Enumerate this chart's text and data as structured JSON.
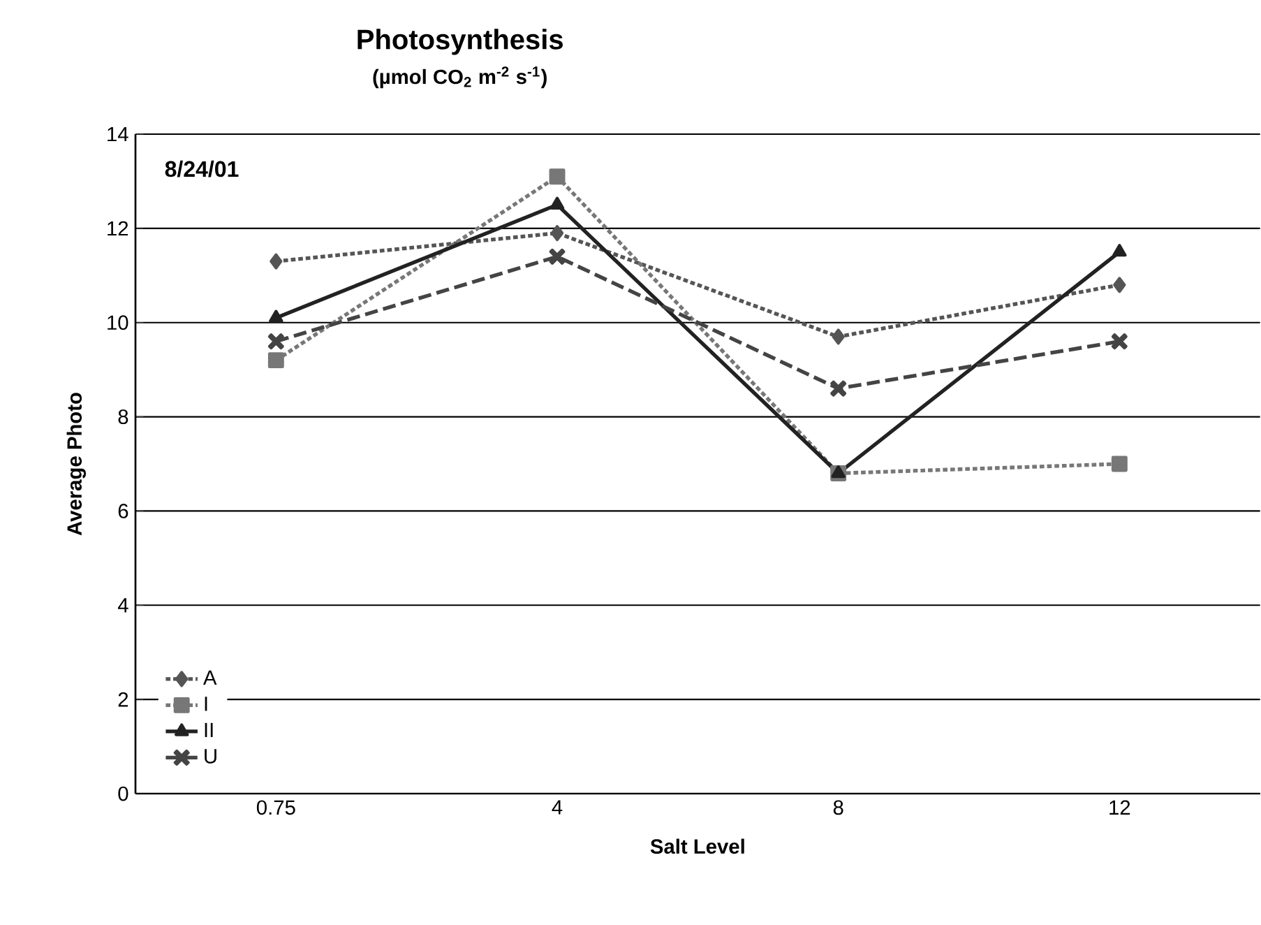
{
  "chart_data": {
    "type": "line",
    "title": "Photosynthesis",
    "subtitle": "(µmol CO$_{2}$ m$^{-2}$ s$^{-1}$)",
    "xlabel": "Salt Level",
    "ylabel": "Average Photo",
    "categories": [
      "0.75",
      "4",
      "8",
      "12"
    ],
    "series": [
      {
        "name": "A",
        "color": "#555555",
        "marker": "diamond",
        "line_style": "dotted",
        "values": [
          11.3,
          11.9,
          9.7,
          10.8
        ]
      },
      {
        "name": "I",
        "color": "#777777",
        "marker": "square",
        "line_style": "dotted",
        "values": [
          9.2,
          13.1,
          6.8,
          7.0
        ]
      },
      {
        "name": "II",
        "color": "#222222",
        "marker": "triangle",
        "line_style": "solid",
        "values": [
          10.1,
          12.5,
          6.8,
          11.5
        ]
      },
      {
        "name": "U",
        "color": "#444444",
        "marker": "cross",
        "line_style": "dashed",
        "values": [
          9.6,
          11.4,
          8.6,
          9.6
        ]
      }
    ],
    "ylim": [
      0,
      14
    ],
    "yticks": [
      0,
      2,
      4,
      6,
      8,
      10,
      12,
      14
    ],
    "grid": "y",
    "legend": "bottom left",
    "annotations": [
      "8/24/01"
    ]
  }
}
